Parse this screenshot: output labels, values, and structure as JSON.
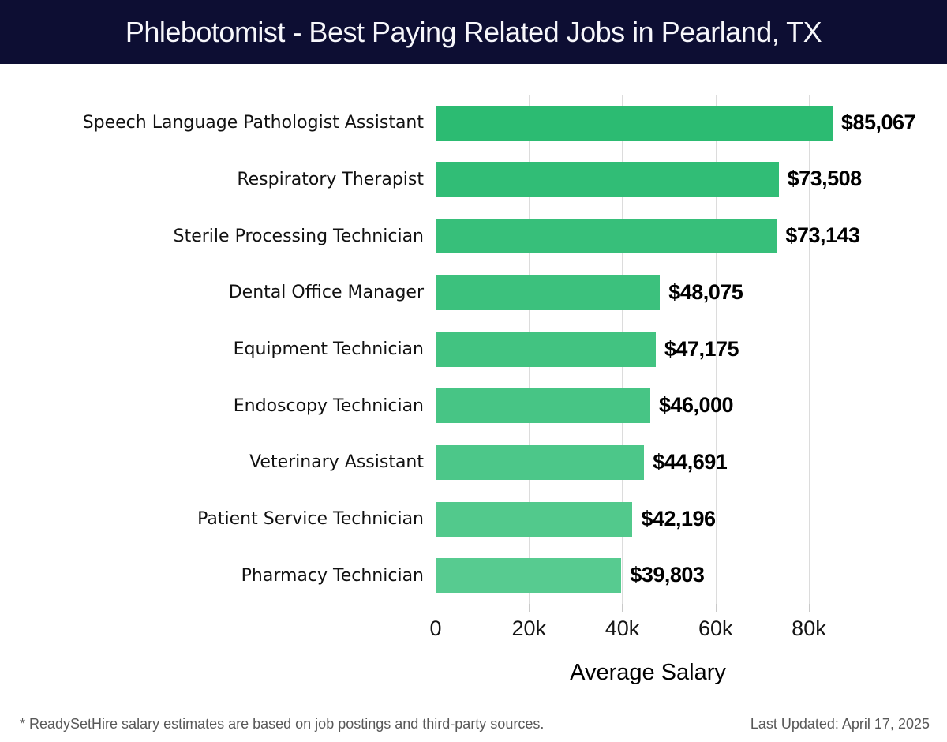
{
  "header": {
    "title": "Phlebotomist - Best Paying Related Jobs in Pearland, TX",
    "bg_color": "#0d0e33",
    "text_color": "#f7f7fb"
  },
  "chart_data": {
    "type": "bar",
    "orientation": "horizontal",
    "title": "Phlebotomist - Best Paying Related Jobs in Pearland, TX",
    "xlabel": "Average Salary",
    "categories": [
      "Speech Language Pathologist Assistant",
      "Respiratory Therapist",
      "Sterile Processing Technician",
      "Dental Office Manager",
      "Equipment Technician",
      "Endoscopy Technician",
      "Veterinary Assistant",
      "Patient Service Technician",
      "Pharmacy Technician"
    ],
    "values": [
      85067,
      73508,
      73143,
      48075,
      47175,
      46000,
      44691,
      42196,
      39803
    ],
    "value_labels": [
      "$85,067",
      "$73,508",
      "$73,143",
      "$48,075",
      "$47,175",
      "$46,000",
      "$44,691",
      "$42,196",
      "$39,803"
    ],
    "bar_colors": [
      "#2cbb72",
      "#31bd76",
      "#37bf7a",
      "#3cc17d",
      "#42c381",
      "#47c585",
      "#4cc789",
      "#52c98c",
      "#57cb90"
    ],
    "xlim": [
      0,
      91000
    ],
    "xticks": {
      "values": [
        0,
        20000,
        40000,
        60000,
        80000
      ],
      "labels": [
        "0",
        "20k",
        "40k",
        "60k",
        "80k"
      ]
    },
    "grid": "vertical",
    "gridline_color": "#dcdcdc",
    "legend": "none"
  },
  "footer": {
    "disclaimer": "* ReadySetHire salary estimates are based on job postings and third-party sources.",
    "last_updated": "Last Updated: April 17, 2025"
  }
}
